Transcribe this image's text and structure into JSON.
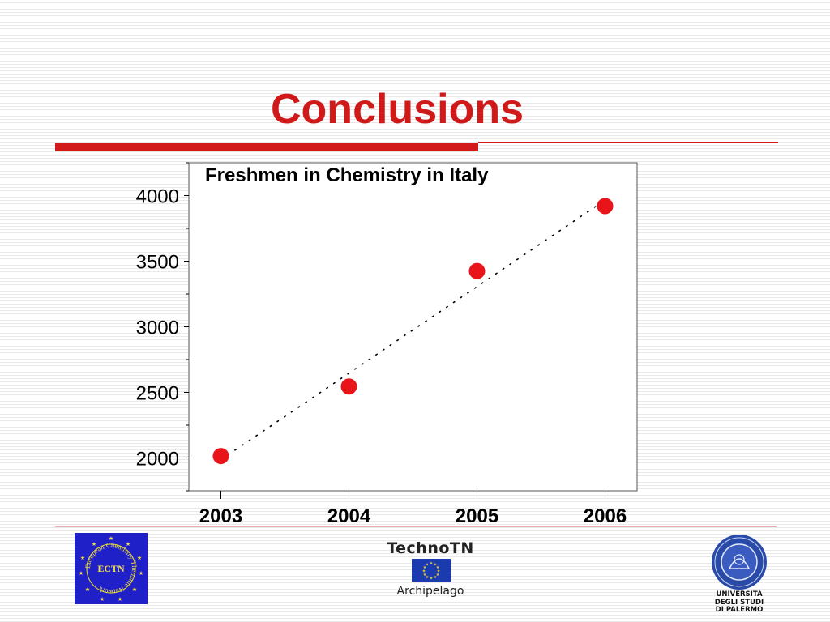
{
  "slide": {
    "title": "Conclusions"
  },
  "colors": {
    "accent": "#d01a1a",
    "marker": "#e8141a"
  },
  "chart_data": {
    "type": "scatter",
    "title": "Freshmen in Chemistry in Italy",
    "xlabel": "",
    "ylabel": "",
    "x": [
      2003,
      2004,
      2005,
      2006
    ],
    "series": [
      {
        "values": [
          2015,
          2545,
          3425,
          3920
        ]
      }
    ],
    "trendline": "dotted linear",
    "xticks": [
      "2003",
      "2004",
      "2005",
      "2006"
    ],
    "yticks": [
      "2000",
      "2500",
      "3000",
      "3500",
      "4000"
    ],
    "ylim": [
      1750,
      4250
    ],
    "xlim": [
      2002.75,
      2006.25
    ],
    "grid": false
  },
  "logos": {
    "left": {
      "icon": "ectn-logo",
      "center_text": "ECTN",
      "ring_text": "European Chemistry Thematic Network"
    },
    "center": {
      "icon": "technotn-logo",
      "name": "TechnoTN",
      "subtitle": "Archipelago"
    },
    "right": {
      "icon": "university-seal",
      "lines": [
        "UNIVERSITÀ",
        "DEGLI STUDI",
        "DI PALERMO"
      ]
    }
  }
}
